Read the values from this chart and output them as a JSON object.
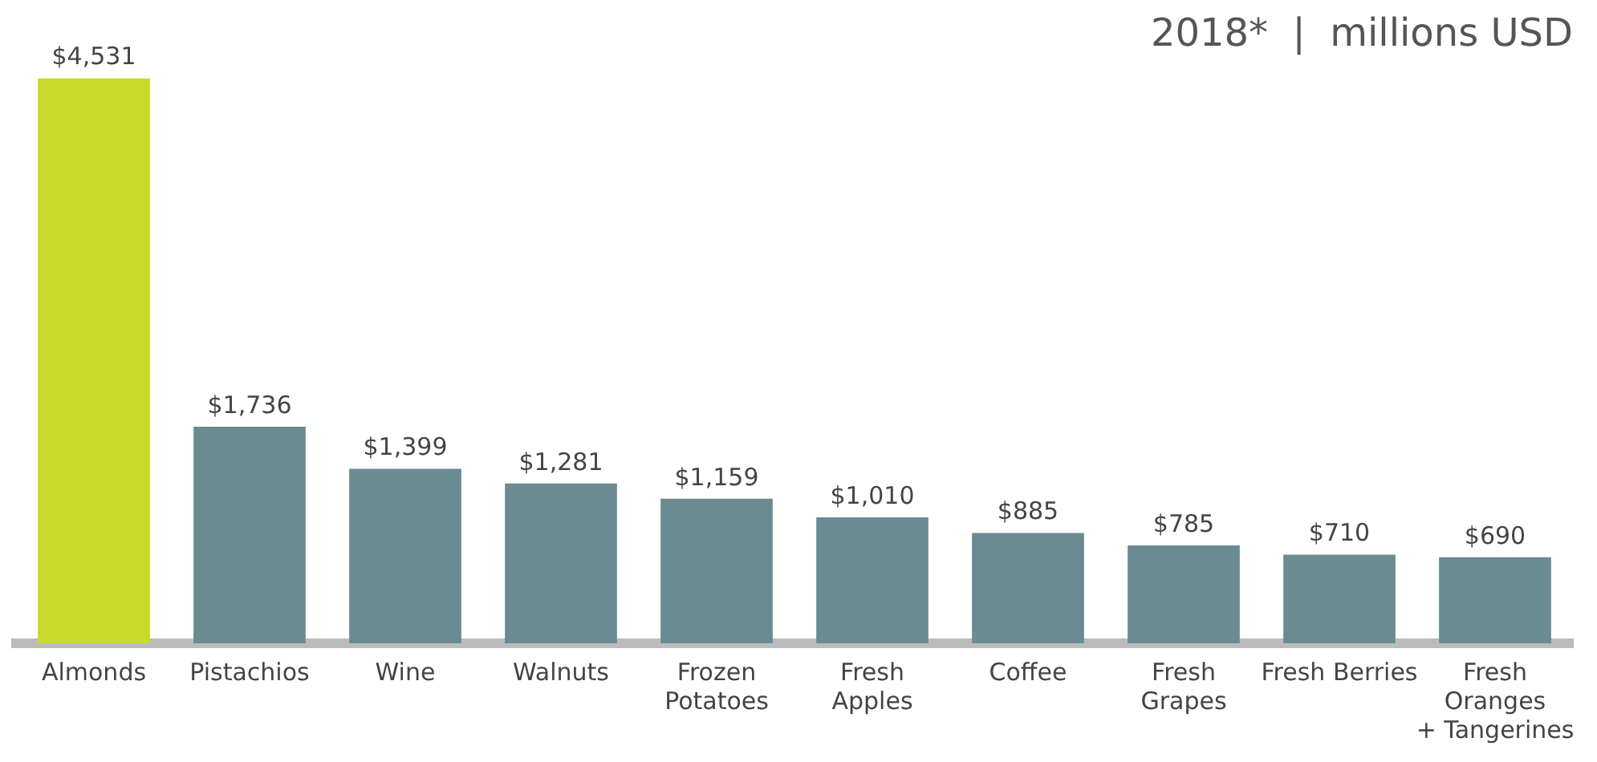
{
  "chart_data": {
    "type": "bar",
    "title": "2018*  |  millions USD",
    "categories": [
      "Almonds",
      "Pistachios",
      "Wine",
      "Walnuts",
      "Frozen\nPotatoes",
      "Fresh\nApples",
      "Coffee",
      "Fresh\nGrapes",
      "Fresh Berries",
      "Fresh\nOranges\n+ Tangerines"
    ],
    "values": [
      4531,
      1736,
      1399,
      1281,
      1159,
      1010,
      885,
      785,
      710,
      690
    ],
    "value_labels": [
      "$4,531",
      "$1,736",
      "$1,399",
      "$1,281",
      "$1,159",
      "$1,010",
      "$885",
      "$785",
      "$710",
      "$690"
    ],
    "colors": [
      "#c8da2b",
      "#698b91",
      "#698b91",
      "#698b91",
      "#698b91",
      "#698b91",
      "#698b91",
      "#698b91",
      "#698b91",
      "#698b91"
    ],
    "grid": false,
    "legend": false
  }
}
